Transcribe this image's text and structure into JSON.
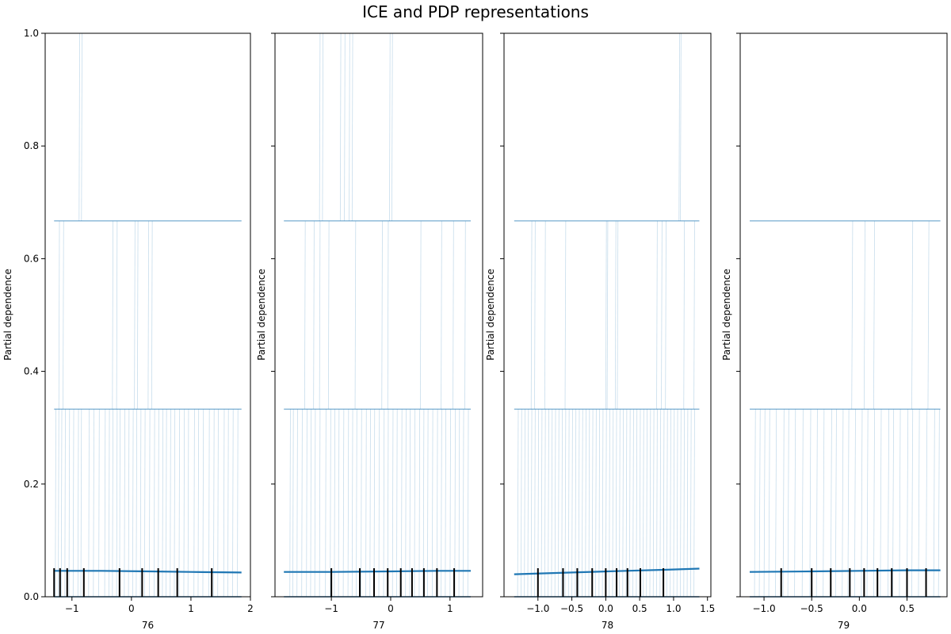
{
  "chart_data": {
    "title": "ICE and PDP representations",
    "type": "line",
    "ylabel": "Partial dependence",
    "ylim": [
      0,
      1
    ],
    "y_ticks": [
      0.0,
      0.2,
      0.4,
      0.6,
      0.8,
      1.0
    ],
    "y_tick_labels": [
      "0.0",
      "0.2",
      "0.4",
      "0.6",
      "0.8",
      "1.0"
    ],
    "ice_levels": [
      0,
      0.333,
      0.667,
      1.0
    ],
    "ice_color": "#1f77b4",
    "pdp_color": "#1f77b4",
    "deciles_color": "#000000",
    "panels": [
      {
        "xlabel": "76",
        "xlim": [
          -1.45,
          2.0
        ],
        "x_ticks": [
          -1,
          0,
          1,
          2
        ],
        "x_tick_labels": [
          "−1",
          "0",
          "1",
          "2"
        ],
        "show_ytick_labels": true,
        "grid_range": [
          -1.3,
          1.85
        ],
        "deciles": [
          -1.3,
          -1.2,
          -1.08,
          -0.8,
          -0.2,
          0.18,
          0.45,
          0.77,
          1.35
        ],
        "pdp": [
          [
            -1.3,
            0.046
          ],
          [
            -0.5,
            0.046
          ],
          [
            0.3,
            0.045
          ],
          [
            1.0,
            0.044
          ],
          [
            1.85,
            0.043
          ]
        ],
        "ice_vertical_x": {
          "0.333": [
            -1.28,
            -1.23,
            -1.18,
            -1.12,
            -1.05,
            -0.98,
            -0.9,
            -0.85,
            -0.72,
            -0.64,
            -0.55,
            -0.45,
            -0.38,
            -0.32,
            -0.25,
            -0.2,
            -0.12,
            -0.05,
            0.02,
            0.08,
            0.15,
            0.22,
            0.3,
            0.38,
            0.45,
            0.52,
            0.58,
            0.65,
            0.72,
            0.8,
            0.88,
            0.95,
            1.05,
            1.12,
            1.2,
            1.3,
            1.38,
            1.45,
            1.55,
            1.62,
            1.7,
            1.78
          ],
          "0.667": [
            -1.22,
            -1.15,
            -0.32,
            -0.25,
            0.05,
            0.1,
            0.28,
            0.34
          ],
          "1.0": [
            -0.88,
            -0.84
          ]
        }
      },
      {
        "xlabel": "77",
        "xlim": [
          -1.95,
          1.55
        ],
        "x_ticks": [
          -1,
          0,
          1
        ],
        "x_tick_labels": [
          "−1",
          "0",
          "1"
        ],
        "show_ytick_labels": false,
        "grid_range": [
          -1.8,
          1.35
        ],
        "deciles": [
          -1.0,
          -0.52,
          -0.28,
          -0.05,
          0.17,
          0.36,
          0.56,
          0.78,
          1.07
        ],
        "pdp": [
          [
            -1.8,
            0.044
          ],
          [
            -1.0,
            0.044
          ],
          [
            0.0,
            0.045
          ],
          [
            0.8,
            0.046
          ],
          [
            1.35,
            0.046
          ]
        ],
        "ice_vertical_x": {
          "0.333": [
            -1.7,
            -1.65,
            -1.58,
            -1.5,
            -1.42,
            -1.35,
            -1.28,
            -1.2,
            -1.1,
            -1.02,
            -0.95,
            -0.88,
            -0.8,
            -0.72,
            -0.65,
            -0.58,
            -0.5,
            -0.42,
            -0.35,
            -0.28,
            -0.2,
            -0.12,
            -0.05,
            0.03,
            0.1,
            0.18,
            0.25,
            0.32,
            0.4,
            0.48,
            0.55,
            0.62,
            0.7,
            0.78,
            0.85,
            0.92,
            1.0,
            1.08,
            1.15,
            1.22,
            1.3
          ],
          "0.667": [
            -1.45,
            -1.3,
            -1.2,
            -1.05,
            -0.6,
            -0.15,
            -0.05,
            0.5,
            0.85,
            1.05,
            1.25
          ],
          "1.0": [
            -1.2,
            -1.15,
            -0.85,
            -0.78,
            -0.7,
            -0.65,
            -0.02,
            0.02
          ]
        }
      },
      {
        "xlabel": "78",
        "xlim": [
          -1.5,
          1.55
        ],
        "x_ticks": [
          -1.0,
          -0.5,
          0.0,
          0.5,
          1.0,
          1.5
        ],
        "x_tick_labels": [
          "−1.0",
          "−0.5",
          "0.0",
          "0.5",
          "1.0",
          "1.5"
        ],
        "show_ytick_labels": false,
        "grid_range": [
          -1.35,
          1.38
        ],
        "deciles": [
          -1.0,
          -0.63,
          -0.42,
          -0.2,
          0.0,
          0.16,
          0.32,
          0.51,
          0.85
        ],
        "pdp": [
          [
            -1.35,
            0.04
          ],
          [
            -0.5,
            0.043
          ],
          [
            0.3,
            0.046
          ],
          [
            0.9,
            0.048
          ],
          [
            1.38,
            0.05
          ]
        ],
        "ice_vertical_x": {
          "0.333": [
            -1.3,
            -1.25,
            -1.2,
            -1.15,
            -1.1,
            -1.05,
            -1.0,
            -0.95,
            -0.9,
            -0.85,
            -0.8,
            -0.75,
            -0.7,
            -0.65,
            -0.6,
            -0.55,
            -0.5,
            -0.45,
            -0.4,
            -0.35,
            -0.3,
            -0.25,
            -0.2,
            -0.15,
            -0.1,
            -0.05,
            0.0,
            0.05,
            0.1,
            0.15,
            0.2,
            0.25,
            0.3,
            0.35,
            0.4,
            0.45,
            0.5,
            0.55,
            0.6,
            0.65,
            0.7,
            0.75,
            0.8,
            0.85,
            0.9,
            0.95,
            1.0,
            1.05,
            1.1,
            1.15,
            1.2,
            1.25,
            1.3
          ],
          "0.667": [
            -1.1,
            -1.05,
            -0.9,
            -0.6,
            0.0,
            0.02,
            0.14,
            0.17,
            0.75,
            0.82,
            0.88,
            1.15,
            1.3
          ],
          "1.0": [
            1.08,
            1.1
          ]
        }
      },
      {
        "xlabel": "79",
        "xlim": [
          -1.25,
          0.92
        ],
        "x_ticks": [
          -1.0,
          -0.5,
          0.0,
          0.5
        ],
        "x_tick_labels": [
          "−1.0",
          "−0.5",
          "0.0",
          "0.5"
        ],
        "show_ytick_labels": false,
        "grid_range": [
          -1.15,
          0.85
        ],
        "deciles": [
          -0.82,
          -0.5,
          -0.3,
          -0.1,
          0.05,
          0.19,
          0.34,
          0.5,
          0.7
        ],
        "pdp": [
          [
            -1.15,
            0.044
          ],
          [
            -0.5,
            0.045
          ],
          [
            0.0,
            0.046
          ],
          [
            0.5,
            0.047
          ],
          [
            0.85,
            0.047
          ]
        ],
        "ice_vertical_x": {
          "0.333": [
            -1.1,
            -1.05,
            -1.0,
            -0.95,
            -0.88,
            -0.8,
            -0.75,
            -0.68,
            -0.6,
            -0.52,
            -0.45,
            -0.38,
            -0.3,
            -0.25,
            -0.18,
            -0.12,
            -0.05,
            0.02,
            0.08,
            0.15,
            0.22,
            0.3,
            0.35,
            0.42,
            0.5,
            0.55,
            0.62,
            0.7,
            0.78,
            0.83
          ],
          "0.667": [
            -0.08,
            0.05,
            0.15,
            0.55,
            0.72
          ],
          "1.0": []
        }
      }
    ]
  }
}
